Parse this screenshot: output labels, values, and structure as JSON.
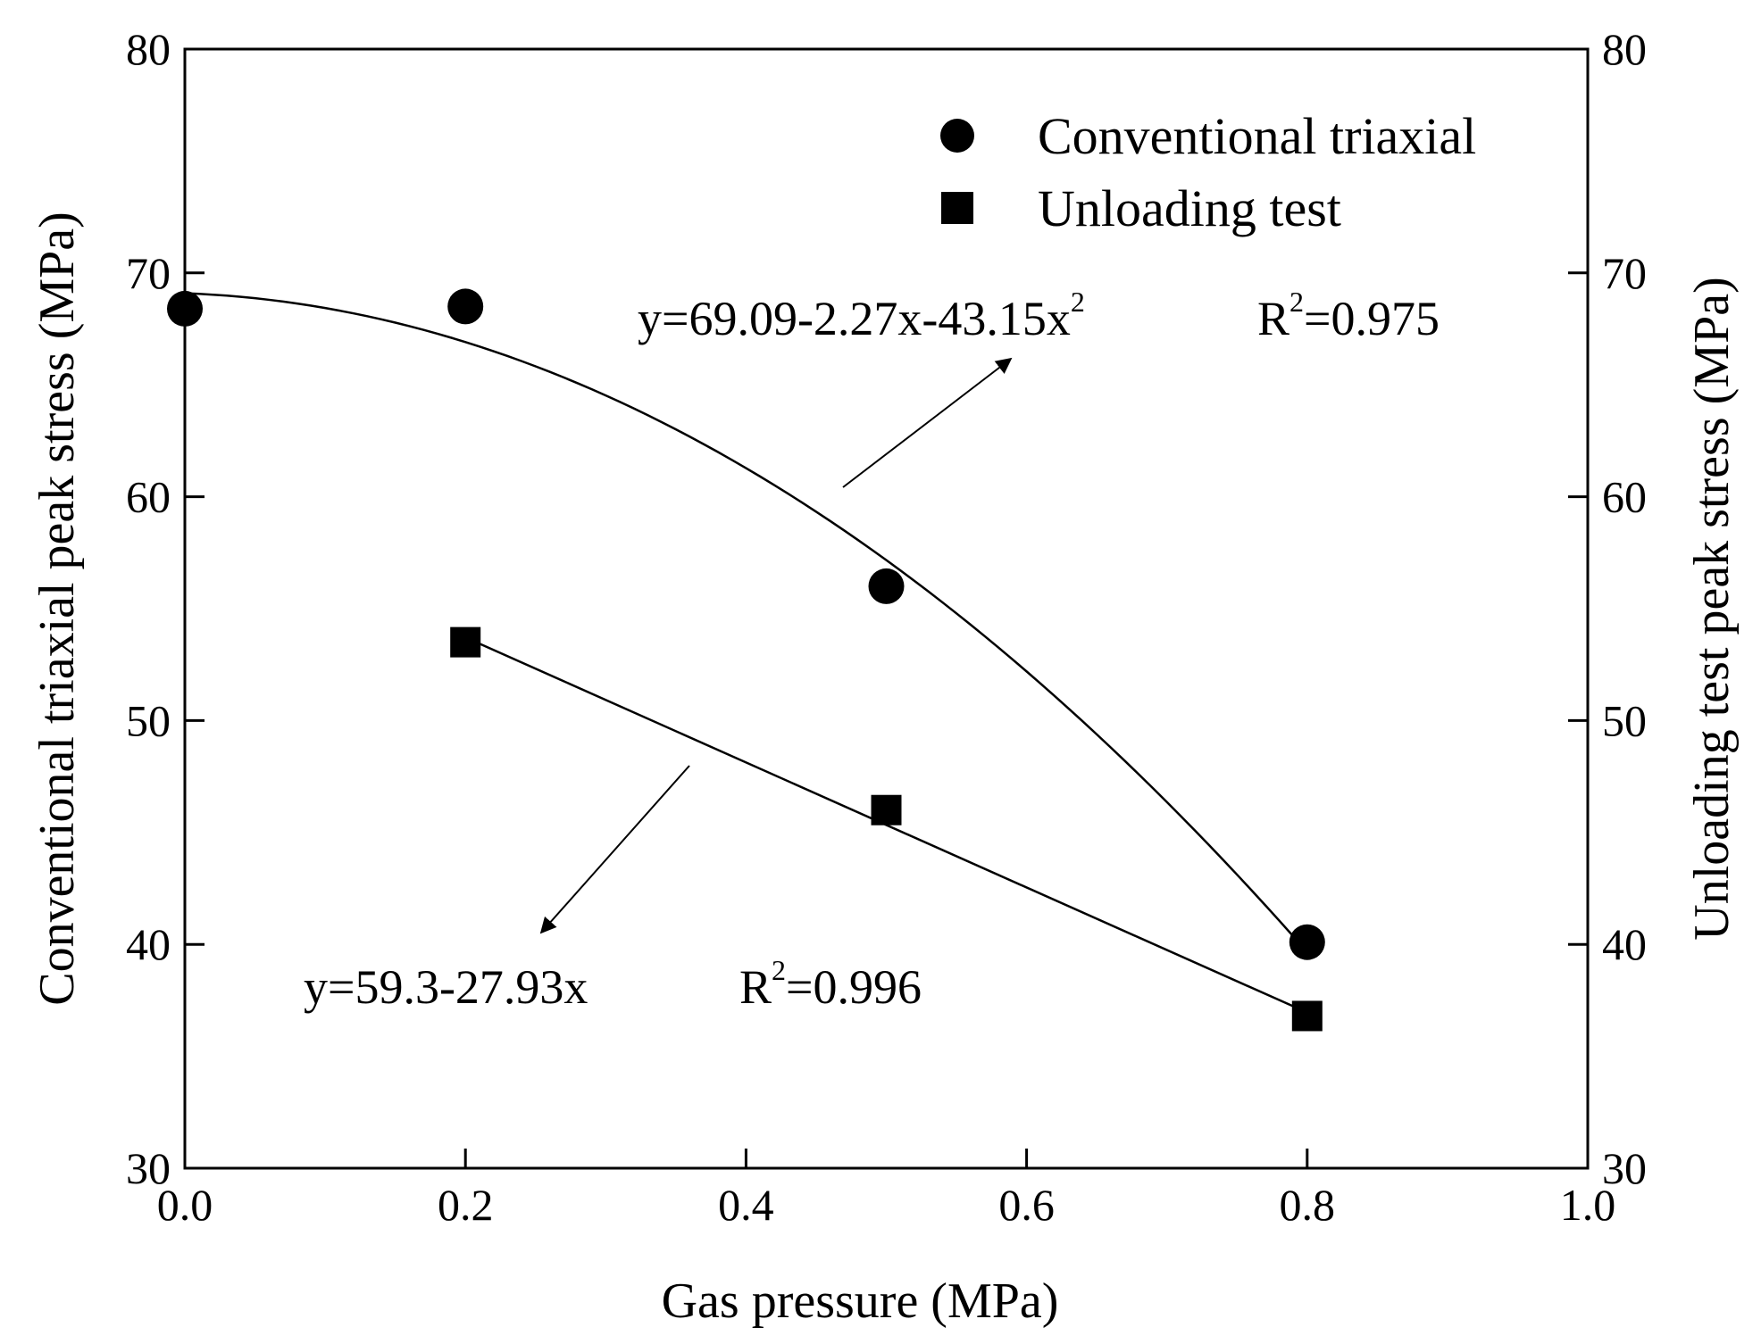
{
  "chart_data": {
    "type": "scatter",
    "title": "",
    "xlabel": "Gas pressure (MPa)",
    "ylabel": "Conventional triaxial peak stress (MPa)",
    "y2label": "Unloading test peak stress (MPa)",
    "xlim": [
      0.0,
      1.0
    ],
    "ylim": [
      30,
      80
    ],
    "y2lim": [
      30,
      80
    ],
    "xticks": [
      "0.0",
      "0.2",
      "0.4",
      "0.6",
      "0.8",
      "1.0"
    ],
    "xtick_values": [
      0.0,
      0.2,
      0.4,
      0.6,
      0.8,
      1.0
    ],
    "yticks": [
      "30",
      "40",
      "50",
      "60",
      "70",
      "80"
    ],
    "ytick_values": [
      30,
      40,
      50,
      60,
      70,
      80
    ],
    "grid": false,
    "legend_position": "top-right",
    "series": [
      {
        "name": "Conventional triaxial",
        "marker": "circle",
        "x": [
          0.0,
          0.2,
          0.5,
          0.8
        ],
        "y": [
          68.4,
          68.5,
          56.0,
          40.1
        ],
        "fit": {
          "type": "quadratic",
          "coefficients": [
            69.09,
            -2.27,
            -43.15
          ],
          "x_range": [
            0.0,
            0.8
          ]
        }
      },
      {
        "name": "Unloading test",
        "marker": "square",
        "x": [
          0.2,
          0.5,
          0.8
        ],
        "y": [
          53.5,
          46.0,
          36.8
        ],
        "fit": {
          "type": "linear",
          "coefficients": [
            59.3,
            -27.93
          ],
          "x_range": [
            0.2,
            0.8
          ]
        }
      }
    ],
    "annotations": [
      {
        "equation_main": "y=69.09-2.27x-43.15x",
        "equation_sup": "2",
        "r2_prefix": "R",
        "r2_sup": "2",
        "r2_value": "=0.975"
      },
      {
        "equation_main": "y=59.3-27.93x",
        "equation_sup": "",
        "r2_prefix": "R",
        "r2_sup": "2",
        "r2_value": "=0.996"
      }
    ]
  },
  "colors": {
    "ink": "#000000",
    "background": "#ffffff"
  }
}
